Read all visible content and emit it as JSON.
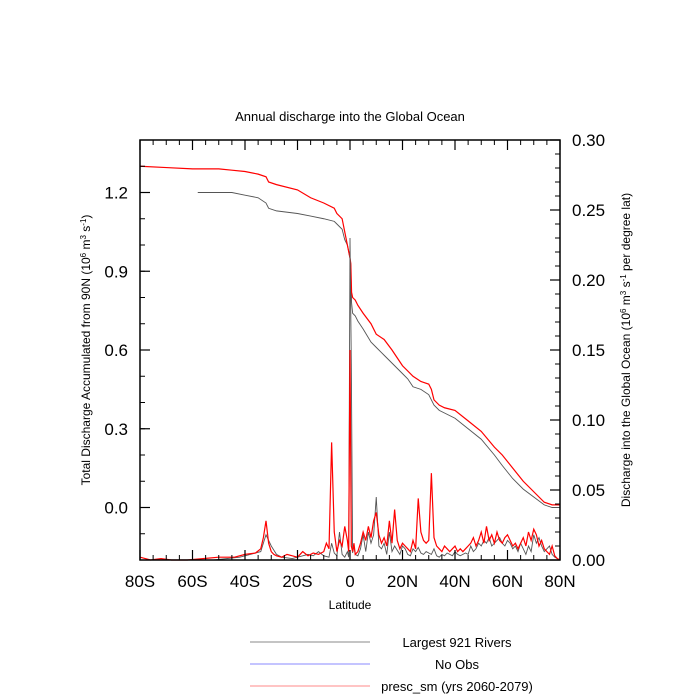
{
  "chart_data": {
    "type": "line",
    "title": "Annual discharge into the Global Ocean",
    "xlabel": "Latitude",
    "ylabel_left_main": "Total Discharge Accumulated from 90N (10",
    "ylabel_left_sup1": "6",
    "ylabel_left_mid": " m",
    "ylabel_left_sup2": "3",
    "ylabel_left_mid2": " s",
    "ylabel_left_sup3": "-1",
    "ylabel_left_end": ")",
    "ylabel_right_main": "Discharge into the Global Ocean (10",
    "ylabel_right_sup1": "6",
    "ylabel_right_mid": " m",
    "ylabel_right_sup2": "3",
    "ylabel_right_mid2": " s",
    "ylabel_right_sup3": "-1",
    "ylabel_right_end": " per degree lat)",
    "xlim": [
      -80,
      80
    ],
    "ylim_left": [
      -0.2,
      1.4
    ],
    "ylim_right": [
      0.0,
      0.3
    ],
    "x_ticks": [
      {
        "value": -80,
        "label": "80S"
      },
      {
        "value": -60,
        "label": "60S"
      },
      {
        "value": -40,
        "label": "40S"
      },
      {
        "value": -20,
        "label": "20S"
      },
      {
        "value": 0,
        "label": "0"
      },
      {
        "value": 20,
        "label": "20N"
      },
      {
        "value": 40,
        "label": "40N"
      },
      {
        "value": 60,
        "label": "60N"
      },
      {
        "value": 80,
        "label": "80N"
      }
    ],
    "y_ticks_left": [
      {
        "value": 0.0,
        "label": "0.0"
      },
      {
        "value": 0.3,
        "label": "0.3"
      },
      {
        "value": 0.6,
        "label": "0.6"
      },
      {
        "value": 0.9,
        "label": "0.9"
      },
      {
        "value": 1.2,
        "label": "1.2"
      }
    ],
    "y_ticks_right": [
      {
        "value": 0.0,
        "label": "0.00"
      },
      {
        "value": 0.05,
        "label": "0.05"
      },
      {
        "value": 0.1,
        "label": "0.10"
      },
      {
        "value": 0.15,
        "label": "0.15"
      },
      {
        "value": 0.2,
        "label": "0.20"
      },
      {
        "value": 0.25,
        "label": "0.25"
      },
      {
        "value": 0.3,
        "label": "0.30"
      }
    ],
    "series": [
      {
        "name": "Largest 921 Rivers",
        "color": "#555555",
        "axis": "left",
        "x": [
          -58,
          -45,
          -40,
          -35,
          -32,
          -31,
          -28,
          -20,
          -15,
          -10,
          -6,
          -5,
          -3,
          -2,
          -1,
          0,
          0.3,
          0.6,
          1,
          2,
          3,
          5,
          8,
          10,
          13,
          16,
          18,
          20,
          22,
          24,
          27,
          30,
          32,
          34,
          36,
          40,
          45,
          50,
          55,
          58,
          62,
          66,
          70,
          74,
          77,
          80
        ],
        "y": [
          1.2,
          1.2,
          1.19,
          1.18,
          1.16,
          1.14,
          1.13,
          1.12,
          1.11,
          1.1,
          1.09,
          1.08,
          1.06,
          1.02,
          1.0,
          0.95,
          0.92,
          0.78,
          0.74,
          0.73,
          0.71,
          0.68,
          0.63,
          0.61,
          0.58,
          0.55,
          0.53,
          0.51,
          0.49,
          0.46,
          0.45,
          0.43,
          0.39,
          0.37,
          0.36,
          0.34,
          0.3,
          0.26,
          0.2,
          0.16,
          0.11,
          0.07,
          0.04,
          0.01,
          0.0,
          0.0
        ]
      },
      {
        "name": "No Obs",
        "color": "#8888ff",
        "axis": "left",
        "x": [],
        "y": []
      },
      {
        "name": "presc_sm (yrs 2060-2079)",
        "color": "#ff0000",
        "axis": "left",
        "x": [
          -80,
          -70,
          -60,
          -50,
          -45,
          -40,
          -35,
          -32,
          -31,
          -28,
          -20,
          -15,
          -10,
          -6,
          -5,
          -3,
          -2,
          -1,
          0,
          0.3,
          0.6,
          1,
          2,
          3,
          5,
          8,
          10,
          13,
          16,
          18,
          20,
          22,
          24,
          27,
          30,
          31,
          32,
          34,
          36,
          40,
          45,
          50,
          55,
          58,
          62,
          66,
          70,
          74,
          77,
          80
        ],
        "y": [
          1.3,
          1.295,
          1.29,
          1.29,
          1.285,
          1.28,
          1.27,
          1.26,
          1.24,
          1.23,
          1.21,
          1.18,
          1.16,
          1.14,
          1.12,
          1.1,
          1.05,
          1.0,
          0.95,
          0.93,
          0.82,
          0.8,
          0.79,
          0.77,
          0.74,
          0.7,
          0.66,
          0.64,
          0.6,
          0.57,
          0.54,
          0.52,
          0.5,
          0.48,
          0.47,
          0.45,
          0.41,
          0.39,
          0.38,
          0.37,
          0.33,
          0.29,
          0.23,
          0.2,
          0.15,
          0.1,
          0.06,
          0.02,
          0.01,
          0.01
        ]
      },
      {
        "name": "Largest 921 Rivers (per degree lat)",
        "color": "#555555",
        "axis": "right",
        "x": [
          -80,
          -78,
          -72,
          -62,
          -52,
          -42,
          -38,
          -34,
          -32,
          -30,
          -28,
          -26,
          -22,
          -18,
          -16,
          -14,
          -12,
          -10,
          -8,
          -7,
          -6,
          -5,
          -4,
          -3,
          -2,
          -1,
          -0.5,
          0,
          0.5,
          1,
          1.5,
          2,
          3,
          4,
          5,
          6,
          7,
          8,
          9,
          10,
          11,
          12,
          13,
          14,
          15,
          16,
          17,
          18,
          19,
          20,
          21,
          22,
          23,
          24,
          25,
          26,
          27,
          28,
          29,
          30,
          31,
          32,
          33,
          34,
          35,
          36,
          37,
          38,
          39,
          40,
          41,
          42,
          43,
          44,
          45,
          46,
          47,
          48,
          49,
          50,
          51,
          52,
          53,
          54,
          55,
          56,
          57,
          58,
          59,
          60,
          61,
          62,
          63,
          64,
          65,
          66,
          67,
          68,
          69,
          70,
          71,
          72,
          73,
          74,
          75,
          76,
          77,
          78,
          79,
          80
        ],
        "y": [
          0.0,
          0.0,
          0.0,
          0.0,
          0.0,
          0.002,
          0.004,
          0.006,
          0.018,
          0.01,
          0.004,
          0.002,
          0.001,
          0.003,
          0.004,
          0.003,
          0.006,
          0.003,
          0.002,
          0.012,
          0.005,
          0.003,
          0.02,
          0.004,
          0.002,
          0.006,
          0.002,
          0.23,
          0.14,
          0.005,
          0.01,
          0.004,
          0.003,
          0.008,
          0.018,
          0.006,
          0.02,
          0.012,
          0.018,
          0.045,
          0.01,
          0.008,
          0.012,
          0.004,
          0.02,
          0.006,
          0.01,
          0.007,
          0.004,
          0.01,
          0.008,
          0.004,
          0.003,
          0.008,
          0.006,
          0.009,
          0.005,
          0.004,
          0.006,
          0.005,
          0.004,
          0.008,
          0.003,
          0.002,
          0.004,
          0.003,
          0.005,
          0.004,
          0.003,
          0.006,
          0.004,
          0.003,
          0.004,
          0.005,
          0.004,
          0.01,
          0.006,
          0.008,
          0.012,
          0.01,
          0.014,
          0.012,
          0.016,
          0.01,
          0.012,
          0.014,
          0.016,
          0.012,
          0.01,
          0.014,
          0.012,
          0.008,
          0.01,
          0.006,
          0.012,
          0.008,
          0.004,
          0.01,
          0.006,
          0.018,
          0.012,
          0.016,
          0.01,
          0.006,
          0.008,
          0.01,
          0.004,
          0.002,
          0.001,
          0.0
        ]
      },
      {
        "name": "presc_sm (yrs 2060-2079) (per degree lat)",
        "color": "#ff0000",
        "axis": "right",
        "x": [
          -80,
          -78,
          -76,
          -72,
          -68,
          -62,
          -56,
          -50,
          -44,
          -40,
          -36,
          -34,
          -33,
          -32,
          -31,
          -30,
          -29,
          -28,
          -26,
          -24,
          -22,
          -20,
          -18,
          -16,
          -14,
          -12,
          -10,
          -9,
          -8,
          -7,
          -6,
          -5,
          -4,
          -3,
          -2,
          -1,
          -0.5,
          0,
          0.5,
          1,
          1.5,
          2,
          3,
          4,
          5,
          6,
          7,
          8,
          9,
          10,
          11,
          12,
          13,
          14,
          15,
          16,
          17,
          18,
          19,
          20,
          21,
          22,
          23,
          24,
          25,
          26,
          27,
          28,
          29,
          30,
          31,
          32,
          33,
          34,
          35,
          36,
          37,
          38,
          39,
          40,
          41,
          42,
          43,
          44,
          45,
          46,
          47,
          48,
          49,
          50,
          51,
          52,
          53,
          54,
          55,
          56,
          57,
          58,
          59,
          60,
          61,
          62,
          63,
          64,
          65,
          66,
          67,
          68,
          69,
          70,
          71,
          72,
          73,
          74,
          75,
          76,
          77,
          78,
          79,
          80
        ],
        "y": [
          0.002,
          0.001,
          0.0,
          0.001,
          0.0,
          0.0,
          0.001,
          0.002,
          0.002,
          0.004,
          0.005,
          0.008,
          0.016,
          0.028,
          0.012,
          0.006,
          0.004,
          0.003,
          0.002,
          0.004,
          0.003,
          0.002,
          0.006,
          0.003,
          0.005,
          0.004,
          0.006,
          0.012,
          0.008,
          0.084,
          0.02,
          0.006,
          0.014,
          0.01,
          0.024,
          0.014,
          0.006,
          0.15,
          0.01,
          0.006,
          0.012,
          0.004,
          0.006,
          0.012,
          0.02,
          0.014,
          0.024,
          0.016,
          0.028,
          0.034,
          0.018,
          0.012,
          0.016,
          0.01,
          0.028,
          0.012,
          0.036,
          0.014,
          0.008,
          0.012,
          0.01,
          0.008,
          0.006,
          0.014,
          0.008,
          0.044,
          0.02,
          0.014,
          0.012,
          0.014,
          0.062,
          0.016,
          0.01,
          0.008,
          0.006,
          0.01,
          0.008,
          0.006,
          0.008,
          0.01,
          0.006,
          0.008,
          0.006,
          0.008,
          0.01,
          0.012,
          0.016,
          0.01,
          0.014,
          0.02,
          0.012,
          0.024,
          0.014,
          0.018,
          0.012,
          0.02,
          0.014,
          0.012,
          0.016,
          0.018,
          0.014,
          0.01,
          0.012,
          0.008,
          0.012,
          0.016,
          0.01,
          0.02,
          0.014,
          0.022,
          0.018,
          0.01,
          0.014,
          0.008,
          0.006,
          0.004,
          0.01,
          0.003,
          0.001,
          0.0
        ]
      }
    ],
    "legend": [
      {
        "label": "Largest 921 Rivers",
        "color": "#888888"
      },
      {
        "label": "No Obs",
        "color": "#8888ff"
      },
      {
        "label": "presc_sm (yrs 2060-2079)",
        "color": "#ff8888"
      }
    ]
  }
}
